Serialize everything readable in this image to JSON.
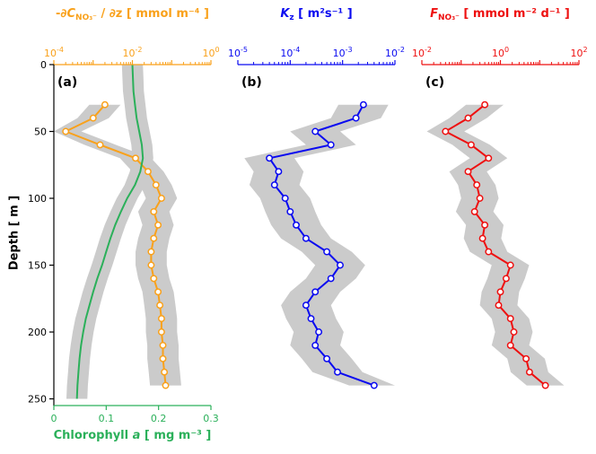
{
  "style": {
    "band_color": "#CBCBCB",
    "background": "#FFFFFF",
    "axis_color": "#000000"
  },
  "axes": {
    "depth": {
      "label": "Depth  [ m ]",
      "min": 0,
      "max": 255,
      "ticks": [
        0,
        50,
        100,
        150,
        200,
        250
      ]
    }
  },
  "chart_data": [
    {
      "id": "a",
      "tag": "(a)",
      "type": "line",
      "x_scale": "log",
      "orientation": "depth-profile",
      "title_parts": {
        "pre": "-∂",
        "ital": "C",
        "sub": "NO₃⁻",
        "post": " / ∂z  [ mmol m⁻⁴ ]"
      },
      "bottom_title_parts": {
        "pre": "Chlorophyll ",
        "ital": "a",
        "post": "  [ mg m⁻³ ]"
      },
      "show_left_axis": true,
      "top_axis": {
        "min_exp": -4,
        "max_exp": 0,
        "labeled_exponents": [
          -4,
          -2,
          0
        ],
        "color": "#F9A11B"
      },
      "bottom_axis": {
        "min": 0,
        "max": 0.3,
        "ticks": [
          0,
          0.1,
          0.2,
          0.3
        ],
        "tick_labels": [
          "0",
          "0.1",
          "0.2",
          "0.3"
        ],
        "color": "#2BB05A"
      },
      "series": [
        {
          "name": "nitrate_gradient",
          "axis": "top",
          "color": "#F9A11B",
          "markers": true,
          "band_factor": 2.5,
          "depth": [
            30,
            40,
            50,
            60,
            70,
            80,
            90,
            100,
            110,
            120,
            130,
            140,
            150,
            160,
            170,
            180,
            190,
            200,
            210,
            220,
            230,
            240
          ],
          "values": [
            0.002,
            0.001,
            0.0002,
            0.0015,
            0.012,
            0.025,
            0.04,
            0.055,
            0.035,
            0.045,
            0.035,
            0.03,
            0.03,
            0.035,
            0.045,
            0.05,
            0.055,
            0.055,
            0.06,
            0.06,
            0.065,
            0.07
          ]
        },
        {
          "name": "chlorophyll_a",
          "axis": "bottom",
          "color": "#2BB05A",
          "markers": false,
          "band_abs": 0.02,
          "depth": [
            0,
            10,
            20,
            30,
            40,
            50,
            60,
            70,
            80,
            90,
            100,
            110,
            120,
            130,
            140,
            150,
            160,
            170,
            180,
            190,
            200,
            210,
            220,
            230,
            240,
            250
          ],
          "values": [
            0.15,
            0.151,
            0.152,
            0.155,
            0.158,
            0.163,
            0.168,
            0.17,
            0.165,
            0.155,
            0.14,
            0.128,
            0.117,
            0.108,
            0.1,
            0.092,
            0.083,
            0.075,
            0.068,
            0.061,
            0.056,
            0.052,
            0.049,
            0.047,
            0.045,
            0.044
          ]
        }
      ]
    },
    {
      "id": "b",
      "tag": "(b)",
      "type": "line",
      "x_scale": "log",
      "orientation": "depth-profile",
      "title_parts": {
        "ital": "K",
        "sub": "z",
        "post": " [ m²s⁻¹ ]"
      },
      "show_left_axis": false,
      "top_axis": {
        "min_exp": -5,
        "max_exp": -2,
        "labeled_exponents": [
          -5,
          -4,
          -3,
          -2
        ],
        "color": "#0A0AF0"
      },
      "series": [
        {
          "name": "vertical_diffusivity",
          "axis": "top",
          "color": "#0A0AF0",
          "markers": true,
          "band_factor": 3,
          "depth": [
            30,
            40,
            50,
            60,
            70,
            80,
            90,
            100,
            110,
            120,
            130,
            140,
            150,
            160,
            170,
            180,
            190,
            200,
            210,
            220,
            230,
            240
          ],
          "values": [
            0.0025,
            0.0018,
            0.0003,
            0.0006,
            4e-05,
            6e-05,
            5e-05,
            8e-05,
            0.0001,
            0.00013,
            0.0002,
            0.0005,
            0.0009,
            0.0006,
            0.0003,
            0.0002,
            0.00025,
            0.00035,
            0.0003,
            0.0005,
            0.0008,
            0.004
          ]
        }
      ]
    },
    {
      "id": "c",
      "tag": "(c)",
      "type": "line",
      "x_scale": "log",
      "orientation": "depth-profile",
      "title_parts": {
        "ital": "F",
        "sub": "NO₃⁻",
        "post": " [ mmol m⁻² d⁻¹ ]"
      },
      "show_left_axis": false,
      "top_axis": {
        "min_exp": -2,
        "max_exp": 2,
        "labeled_exponents": [
          -2,
          0,
          2
        ],
        "color": "#EE1010"
      },
      "series": [
        {
          "name": "nitrate_flux",
          "axis": "top",
          "color": "#EE1010",
          "markers": true,
          "band_factor": 3,
          "depth": [
            30,
            40,
            50,
            60,
            70,
            80,
            90,
            100,
            110,
            120,
            130,
            140,
            150,
            160,
            170,
            180,
            190,
            200,
            210,
            220,
            230,
            240
          ],
          "values": [
            0.4,
            0.15,
            0.04,
            0.18,
            0.5,
            0.15,
            0.25,
            0.3,
            0.22,
            0.4,
            0.35,
            0.5,
            1.8,
            1.4,
            1.0,
            0.9,
            1.8,
            2.2,
            1.8,
            4.5,
            5.5,
            14
          ]
        }
      ]
    }
  ]
}
